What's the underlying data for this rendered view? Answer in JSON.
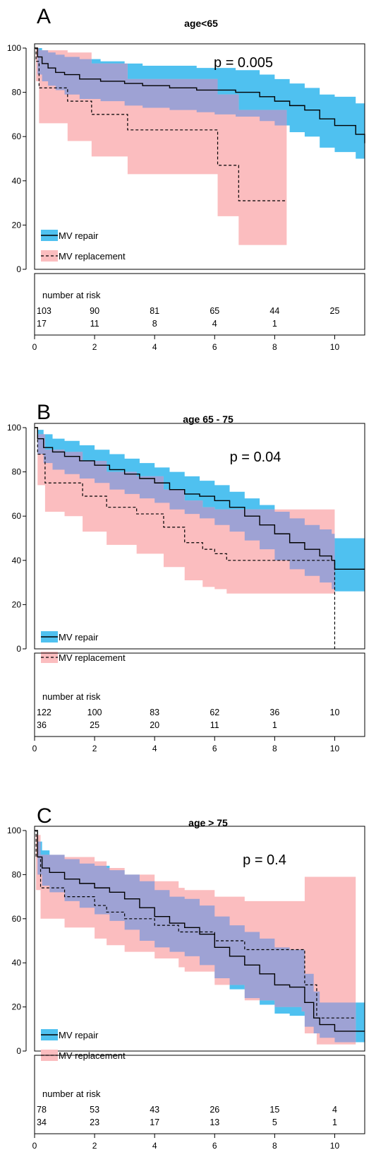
{
  "colors": {
    "repair_band": "#4fc1f0",
    "replacement_band": "#fbbdbf",
    "overlap_band": "#9ea2d4",
    "line": "#000000"
  },
  "chart_data": [
    {
      "type": "line",
      "panel_label": "A",
      "title": "age<65",
      "p_value": "p = 0.005",
      "xlim": [
        0,
        11
      ],
      "ylim": [
        0,
        100
      ],
      "x_ticks": [
        0,
        2,
        4,
        6,
        8,
        10
      ],
      "y_ticks": [
        0,
        20,
        40,
        60,
        80,
        100
      ],
      "legend": [
        "MV repair",
        "MV replacement"
      ],
      "legend_position": "bottom-left",
      "risk_table": {
        "header": "number at risk",
        "times": [
          0,
          2,
          4,
          6,
          8,
          10
        ],
        "rows": [
          {
            "series": "MV repair",
            "values": [
              "103",
              "90",
              "81",
              "65",
              "44",
              "25"
            ]
          },
          {
            "series": "MV replacement",
            "values": [
              "17",
              "11",
              "8",
              "4",
              "1",
              ""
            ]
          }
        ]
      },
      "series": [
        {
          "name": "MV repair",
          "linestyle": "solid",
          "x": [
            0,
            0.1,
            0.25,
            0.45,
            0.7,
            1.0,
            1.5,
            2.2,
            3.0,
            3.6,
            4.5,
            5.4,
            6.0,
            6.7,
            7.5,
            8.0,
            8.5,
            9.0,
            9.5,
            10.0,
            10.7,
            11.0
          ],
          "y": [
            100,
            96,
            93,
            91,
            89,
            88,
            86,
            85,
            84,
            83,
            82,
            81,
            81,
            80,
            78,
            76,
            74,
            72,
            68,
            65,
            61,
            57
          ],
          "lower": [
            100,
            88,
            85,
            83,
            81,
            79,
            77,
            76,
            74,
            73,
            72,
            71,
            70,
            69,
            67,
            65,
            62,
            60,
            55,
            53,
            50,
            45
          ],
          "upper": [
            100,
            100,
            99,
            98,
            97,
            96,
            95,
            94,
            93,
            92,
            92,
            91,
            91,
            90,
            88,
            86,
            84,
            82,
            79,
            78,
            75,
            72
          ]
        },
        {
          "name": "MV replacement",
          "linestyle": "dashed",
          "x": [
            0,
            0.05,
            0.15,
            1.1,
            1.9,
            3.1,
            4.0,
            6.0,
            6.1,
            6.8,
            8.4
          ],
          "y": [
            100,
            94,
            82,
            76,
            70,
            63,
            63,
            63,
            47,
            31,
            31
          ],
          "lower": [
            100,
            85,
            66,
            58,
            51,
            43,
            43,
            43,
            24,
            11,
            11
          ],
          "upper": [
            100,
            100,
            99,
            98,
            93,
            86,
            86,
            86,
            79,
            72,
            72
          ]
        }
      ]
    },
    {
      "type": "line",
      "panel_label": "B",
      "title": "age 65 - 75",
      "p_value": "p = 0.04",
      "xlim": [
        0,
        11
      ],
      "ylim": [
        0,
        100
      ],
      "x_ticks": [
        0,
        2,
        4,
        6,
        8,
        10
      ],
      "y_ticks": [
        0,
        20,
        40,
        60,
        80,
        100
      ],
      "legend": [
        "MV repair",
        "MV replacement"
      ],
      "legend_position": "bottom-left",
      "risk_table": {
        "header": "number at risk",
        "times": [
          0,
          2,
          4,
          6,
          8,
          10
        ],
        "rows": [
          {
            "series": "MV repair",
            "values": [
              "122",
              "100",
              "83",
              "62",
              "36",
              "10"
            ]
          },
          {
            "series": "MV replacement",
            "values": [
              "36",
              "25",
              "20",
              "11",
              "1",
              ""
            ]
          }
        ]
      },
      "series": [
        {
          "name": "MV repair",
          "linestyle": "solid",
          "x": [
            0,
            0.1,
            0.3,
            0.6,
            1.0,
            1.5,
            2.0,
            2.5,
            3.0,
            3.5,
            4.0,
            4.5,
            5.0,
            5.5,
            6.0,
            6.5,
            7.0,
            7.5,
            8.0,
            8.5,
            9.0,
            9.5,
            9.9,
            10.0,
            11.0
          ],
          "y": [
            100,
            95,
            91,
            89,
            87,
            85,
            83,
            81,
            79,
            77,
            75,
            72,
            70,
            69,
            67,
            64,
            60,
            56,
            52,
            48,
            45,
            42,
            40,
            36,
            36
          ],
          "lower": [
            100,
            88,
            84,
            81,
            79,
            77,
            75,
            72,
            70,
            68,
            66,
            63,
            61,
            59,
            56,
            53,
            49,
            45,
            40,
            36,
            33,
            30,
            27,
            26,
            26
          ],
          "upper": [
            100,
            99,
            97,
            95,
            94,
            92,
            90,
            88,
            86,
            84,
            82,
            80,
            78,
            76,
            74,
            71,
            68,
            65,
            62,
            59,
            56,
            54,
            52,
            50,
            50
          ]
        },
        {
          "name": "MV replacement",
          "linestyle": "dashed",
          "x": [
            0,
            0.1,
            0.35,
            1.0,
            1.6,
            2.4,
            3.4,
            4.3,
            5.0,
            5.6,
            6.0,
            6.4,
            7.0,
            8.0,
            9.0,
            9.9,
            10.0
          ],
          "y": [
            100,
            88,
            75,
            75,
            69,
            64,
            61,
            55,
            48,
            45,
            43,
            40,
            40,
            40,
            40,
            40,
            0
          ],
          "lower": [
            100,
            74,
            62,
            60,
            53,
            47,
            43,
            37,
            31,
            28,
            27,
            25,
            25,
            25,
            25,
            25,
            25
          ],
          "upper": [
            100,
            97,
            90,
            89,
            85,
            80,
            78,
            72,
            67,
            64,
            63,
            63,
            63,
            63,
            63,
            63,
            63
          ]
        }
      ]
    },
    {
      "type": "line",
      "panel_label": "C",
      "title": "age > 75",
      "p_value": "p = 0.4",
      "xlim": [
        0,
        11
      ],
      "ylim": [
        0,
        100
      ],
      "x_ticks": [
        0,
        2,
        4,
        6,
        8,
        10
      ],
      "y_ticks": [
        0,
        20,
        40,
        60,
        80,
        100
      ],
      "legend": [
        "MV repair",
        "MV replacement"
      ],
      "legend_position": "bottom-left",
      "risk_table": {
        "header": "number at risk",
        "times": [
          0,
          2,
          4,
          6,
          8,
          10
        ],
        "rows": [
          {
            "series": "MV repair",
            "values": [
              "78",
              "53",
              "43",
              "26",
              "15",
              "4"
            ]
          },
          {
            "series": "MV replacement",
            "values": [
              "34",
              "23",
              "17",
              "13",
              "5",
              "1"
            ]
          }
        ]
      },
      "series": [
        {
          "name": "MV repair",
          "linestyle": "solid",
          "x": [
            0,
            0.1,
            0.25,
            0.5,
            1.0,
            1.5,
            2.0,
            2.5,
            3.0,
            3.5,
            4.0,
            4.5,
            5.0,
            5.5,
            6.0,
            6.5,
            7.0,
            7.5,
            8.0,
            8.5,
            9.0,
            9.3,
            9.5,
            10.0,
            11.0
          ],
          "y": [
            100,
            88,
            83,
            81,
            78,
            76,
            74,
            72,
            69,
            65,
            61,
            58,
            56,
            53,
            47,
            43,
            39,
            35,
            30,
            29,
            22,
            15,
            12,
            9,
            9
          ],
          "lower": [
            100,
            80,
            75,
            72,
            68,
            65,
            62,
            59,
            55,
            50,
            47,
            45,
            43,
            39,
            33,
            28,
            24,
            21,
            17,
            16,
            11,
            8,
            6,
            4,
            4
          ],
          "upper": [
            100,
            95,
            91,
            89,
            87,
            85,
            84,
            82,
            80,
            77,
            73,
            70,
            69,
            66,
            61,
            57,
            54,
            51,
            47,
            46,
            35,
            27,
            22,
            22,
            22
          ]
        },
        {
          "name": "MV replacement",
          "linestyle": "dashed",
          "x": [
            0,
            0.05,
            0.2,
            1.0,
            2.0,
            2.4,
            3.0,
            4.0,
            4.8,
            5.0,
            6.0,
            7.0,
            8.0,
            8.9,
            9.0,
            9.4,
            10.0,
            10.7
          ],
          "y": [
            100,
            88,
            74,
            70,
            66,
            63,
            60,
            57,
            54,
            54,
            50,
            46,
            46,
            46,
            30,
            15,
            15,
            15
          ],
          "lower": [
            100,
            73,
            60,
            56,
            51,
            48,
            45,
            42,
            38,
            36,
            30,
            23,
            20,
            18,
            8,
            3,
            3,
            3
          ],
          "upper": [
            100,
            98,
            89,
            88,
            86,
            83,
            80,
            77,
            74,
            73,
            70,
            68,
            68,
            68,
            79,
            79,
            79,
            79
          ]
        }
      ]
    }
  ]
}
